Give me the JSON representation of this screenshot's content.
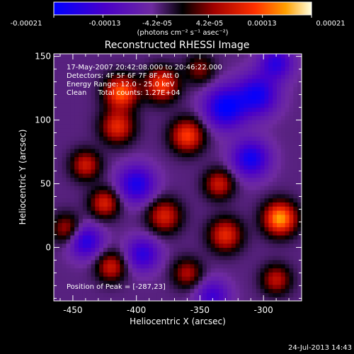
{
  "colorbar": {
    "tick_labels": [
      "-0.00021",
      "-0.00013",
      "-4.2e-05",
      "4.2e-05",
      "0.00013",
      "0.00021"
    ],
    "tick_values": [
      -0.00021,
      -0.00013,
      -4.2e-05,
      4.2e-05,
      0.00013,
      0.00021
    ],
    "range": [
      -0.00021,
      0.00021
    ],
    "unit_label": "(photons cm⁻² s⁻¹ asec⁻²)"
  },
  "chart_data": {
    "type": "heatmap",
    "title": "Reconstructed RHESSI Image",
    "xlabel": "Heliocentric X (arcsec)",
    "ylabel": "Heliocentric Y (arcsec)",
    "xlim": [
      -465,
      -270
    ],
    "ylim": [
      -42,
      152
    ],
    "x_ticks": [
      -450,
      -400,
      -350,
      -300
    ],
    "y_ticks": [
      0,
      50,
      100,
      150
    ],
    "value_range": [
      -0.00021,
      0.00021
    ],
    "peak": [
      -287,
      23
    ],
    "sources": [
      {
        "x": -412,
        "y": 122,
        "amp": 0.00018,
        "s": 9
      },
      {
        "x": -380,
        "y": 128,
        "amp": 0.00016,
        "s": 9
      },
      {
        "x": -360,
        "y": 88,
        "amp": 0.00016,
        "s": 9
      },
      {
        "x": -415,
        "y": 95,
        "amp": 0.00014,
        "s": 9
      },
      {
        "x": -440,
        "y": 65,
        "amp": 0.00012,
        "s": 8
      },
      {
        "x": -425,
        "y": 35,
        "amp": 0.00013,
        "s": 8
      },
      {
        "x": -378,
        "y": 25,
        "amp": 0.00013,
        "s": 9
      },
      {
        "x": -335,
        "y": 50,
        "amp": 0.00012,
        "s": 8
      },
      {
        "x": -330,
        "y": 10,
        "amp": 0.00014,
        "s": 9
      },
      {
        "x": -287,
        "y": 23,
        "amp": 0.00021,
        "s": 9
      },
      {
        "x": -290,
        "y": -25,
        "amp": 0.00011,
        "s": 8
      },
      {
        "x": -420,
        "y": -15,
        "amp": 0.00012,
        "s": 8
      },
      {
        "x": -360,
        "y": -20,
        "amp": 0.0001,
        "s": 8
      },
      {
        "x": -455,
        "y": 15,
        "amp": 0.0001,
        "s": 8
      },
      {
        "x": -350,
        "y": 140,
        "amp": 8e-05,
        "s": 8
      },
      {
        "x": -330,
        "y": 110,
        "amp": -0.00017,
        "s": 11
      },
      {
        "x": -305,
        "y": 120,
        "amp": -0.00015,
        "s": 11
      },
      {
        "x": -400,
        "y": 50,
        "amp": -0.00014,
        "s": 10
      },
      {
        "x": -310,
        "y": 70,
        "amp": -0.00015,
        "s": 10
      },
      {
        "x": -440,
        "y": 5,
        "amp": -0.00013,
        "s": 9
      },
      {
        "x": -395,
        "y": -5,
        "amp": -0.00012,
        "s": 9
      },
      {
        "x": -290,
        "y": 145,
        "amp": -0.00012,
        "s": 9
      },
      {
        "x": -340,
        "y": -38,
        "amp": -0.0001,
        "s": 9
      }
    ],
    "annotations": {
      "date_range": "17-May-2007 20:42:08.000 to 20:46:22.000",
      "detectors": "Detectors: 4F 5F 6F 7F 8F, Att 0",
      "energy": "Energy Range: 12.0 - 25.0 keV",
      "clean": "Clean     Total counts: 1.27E+04",
      "peak_text": "Position of Peak = [-287,23]"
    }
  },
  "footer": {
    "timestamp": "24-Jul-2013 14:43"
  }
}
